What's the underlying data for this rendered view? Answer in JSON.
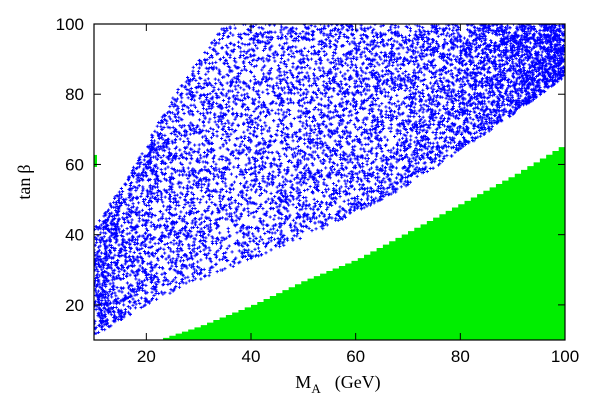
{
  "chart_data": {
    "type": "scatter",
    "xlabel": {
      "main": "M",
      "sub": "A",
      "unit": "(GeV)"
    },
    "ylabel": {
      "main": "tan",
      "greek": "β"
    },
    "xlim": [
      10,
      100
    ],
    "ylim": [
      10,
      100
    ],
    "xticks": [
      20,
      40,
      60,
      80,
      100
    ],
    "yticks": [
      20,
      40,
      60,
      80,
      100
    ],
    "grid": false,
    "series": [
      {
        "kind": "scatter-region",
        "color": "#0000ff",
        "marker": "plus",
        "n_points": 9000,
        "upper_boundary": [
          [
            10,
            42
          ],
          [
            15,
            53
          ],
          [
            20,
            66
          ],
          [
            25,
            79
          ],
          [
            30,
            90
          ],
          [
            33,
            96
          ],
          [
            35,
            100
          ],
          [
            100,
            100
          ]
        ],
        "lower_boundary": [
          [
            10,
            11
          ],
          [
            20,
            20
          ],
          [
            30,
            27
          ],
          [
            40,
            33
          ],
          [
            50,
            39
          ],
          [
            60,
            46
          ],
          [
            70,
            54
          ],
          [
            80,
            64
          ],
          [
            90,
            74
          ],
          [
            100,
            85
          ]
        ]
      },
      {
        "kind": "filled-region",
        "color": "#00ee00",
        "step_width": 1.2,
        "lower_value": 10,
        "upper_boundary": [
          [
            22,
            10
          ],
          [
            30,
            14
          ],
          [
            40,
            20
          ],
          [
            50,
            27
          ],
          [
            60,
            33
          ],
          [
            70,
            41
          ],
          [
            80,
            49
          ],
          [
            90,
            57
          ],
          [
            100,
            66
          ]
        ]
      }
    ],
    "edge_markers": [
      {
        "x": 10,
        "y": 61,
        "color": "#00ee00"
      }
    ]
  }
}
